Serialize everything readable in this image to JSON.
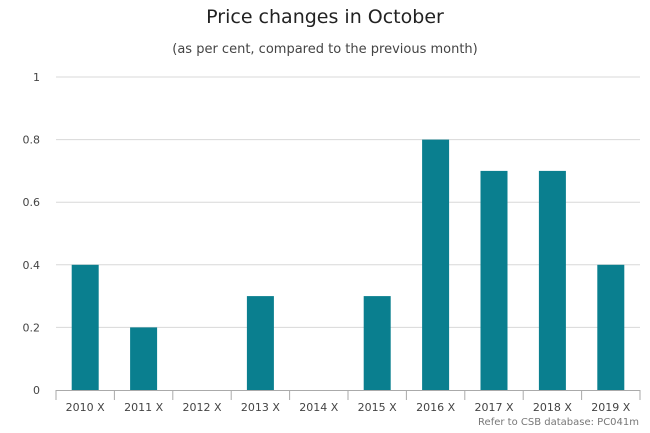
{
  "chart_data": {
    "type": "bar",
    "title": "Price changes in October",
    "subtitle": "(as per cent, compared to the previous month)",
    "categories": [
      "2010 X",
      "2011 X",
      "2012 X",
      "2013 X",
      "2014 X",
      "2015 X",
      "2016 X",
      "2017 X",
      "2018 X",
      "2019 X"
    ],
    "values": [
      0.4,
      0.2,
      0,
      0.3,
      0,
      0.3,
      0.8,
      0.7,
      0.7,
      0.4
    ],
    "ylim": [
      0,
      1
    ],
    "yticks": [
      "0",
      "0.2",
      "0.4",
      "0.6",
      "0.8",
      "1"
    ],
    "grid": true,
    "legend": "none",
    "bar_color": "#0a7f8f"
  },
  "source_text": "Refer to CSB database: PC041m"
}
